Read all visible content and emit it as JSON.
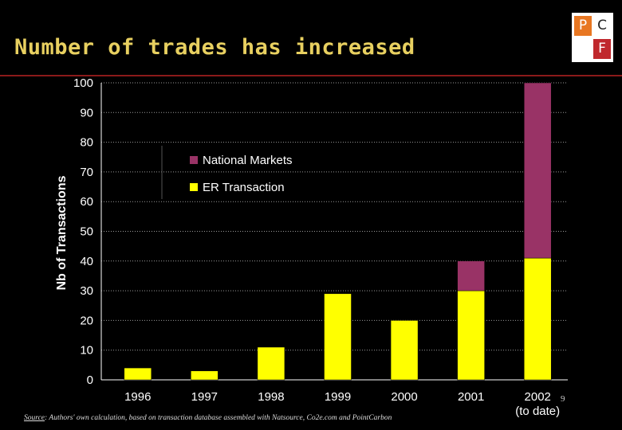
{
  "title": "Number of trades has increased",
  "logo": {
    "letters": [
      "P",
      "C",
      "F"
    ]
  },
  "page_number": "9",
  "source": {
    "label": "Source",
    "text": ": Authors' own calculation, based on transaction database assembled with Natsource, Co2e.com and PointCarbon"
  },
  "colors": {
    "background": "#000000",
    "title": "#e8d060",
    "er_transaction": "#ffff00",
    "national_markets": "#993366",
    "axis_text": "#ffffff",
    "grid": "#9a9a9a"
  },
  "chart_data": {
    "type": "bar",
    "stacked": true,
    "categories": [
      "1996",
      "1997",
      "1998",
      "1999",
      "2000",
      "2001",
      "2002\n(to date)"
    ],
    "series": [
      {
        "name": "ER Transaction",
        "color": "#ffff00",
        "values": [
          4,
          3,
          11,
          29,
          20,
          30,
          41
        ]
      },
      {
        "name": "National Markets",
        "color": "#993366",
        "values": [
          0,
          0,
          0,
          0,
          0,
          10,
          59
        ]
      }
    ],
    "ylabel": "Nb of Transactions",
    "xlabel": "",
    "ylim": [
      0,
      100
    ],
    "yticks": [
      0,
      10,
      20,
      30,
      40,
      50,
      60,
      70,
      80,
      90,
      100
    ],
    "grid": "horizontal-dotted",
    "legend": {
      "placement": "top-left",
      "order": [
        "National Markets",
        "ER Transaction"
      ]
    }
  }
}
